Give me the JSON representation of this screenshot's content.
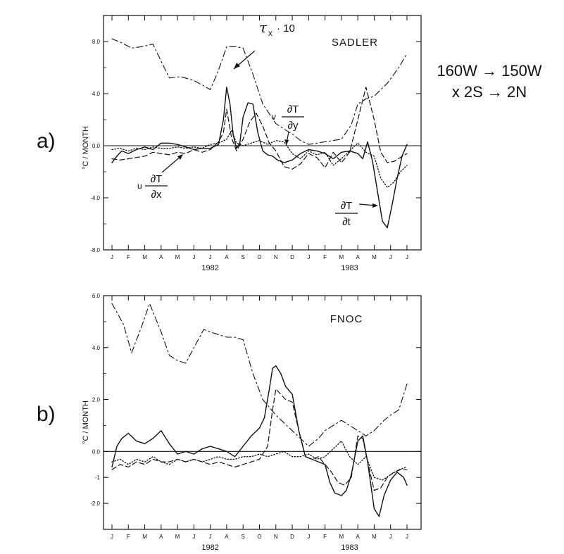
{
  "region": {
    "line1": "160W → 150W",
    "line2": "x 2S → 2N"
  },
  "chart_data": [
    {
      "type": "line",
      "panel": "a)",
      "title": "SADLER",
      "ylabel": "°C / MONTH",
      "ylim": [
        -8.0,
        10.0
      ],
      "yticks": [
        -8.0,
        -4.0,
        0.0,
        4.0,
        8.0
      ],
      "ytick_labels": [
        "-8.0",
        "-4.0",
        "0.0",
        "4.0",
        "8.0"
      ],
      "x_months": [
        "J",
        "F",
        "M",
        "A",
        "M",
        "J",
        "J",
        "A",
        "S",
        "O",
        "N",
        "D",
        "J",
        "F",
        "M",
        "A",
        "M",
        "J",
        "J"
      ],
      "x_years": [
        "1982",
        "1983"
      ],
      "xlim": [
        0,
        18
      ],
      "zero_line": true,
      "annotations": {
        "tau": {
          "sym": "τ",
          "sub": "x",
          "rest": "· 10"
        },
        "v_dTdy": {
          "coef": "v",
          "num": "∂T",
          "den": "∂y"
        },
        "u_dTdx": {
          "coef": "u",
          "num": "∂T",
          "den": "∂x"
        },
        "dTdt": {
          "num": "∂T",
          "den": "∂t"
        }
      },
      "series": [
        {
          "key": "tau_x_10",
          "style": "dash-dot",
          "x": [
            0,
            0.6,
            1.2,
            1.8,
            2.5,
            3.0,
            3.5,
            4.2,
            5.0,
            5.6,
            6.0,
            6.5,
            7.0,
            7.6,
            8.0,
            8.6,
            9.2,
            10.0,
            10.6,
            11.0,
            11.5,
            12.0,
            13.0,
            14.0,
            14.6,
            15.0,
            15.5,
            16.0,
            16.8,
            17.5,
            18.0
          ],
          "y": [
            8.2,
            7.9,
            7.5,
            7.6,
            7.8,
            6.5,
            5.2,
            5.3,
            5.0,
            4.6,
            4.3,
            5.8,
            7.6,
            7.6,
            7.5,
            5.5,
            3.2,
            1.7,
            1.2,
            0.9,
            0.4,
            0.1,
            0.3,
            0.5,
            1.6,
            3.2,
            3.6,
            3.8,
            4.8,
            6.0,
            7.1
          ]
        },
        {
          "key": "dT_dt",
          "style": "solid",
          "x": [
            0,
            0.3,
            0.6,
            1.0,
            1.5,
            2.0,
            2.5,
            3.0,
            3.5,
            4.0,
            4.5,
            5.0,
            5.5,
            6.0,
            6.5,
            6.8,
            7.0,
            7.2,
            7.4,
            7.6,
            7.8,
            8.0,
            8.3,
            8.6,
            8.9,
            9.2,
            9.5,
            9.8,
            10.1,
            10.5,
            11.0,
            11.5,
            12.0,
            12.5,
            13.0,
            13.5,
            14.0,
            14.5,
            15.0,
            15.3,
            15.6,
            15.9,
            16.2,
            16.5,
            16.8,
            17.1,
            17.4,
            17.7,
            18.0
          ],
          "y": [
            -1.3,
            -0.8,
            -0.4,
            -0.6,
            -0.3,
            -0.1,
            -0.3,
            0.2,
            0.2,
            0.1,
            -0.1,
            -0.3,
            -0.2,
            -0.2,
            0.1,
            2.0,
            4.5,
            3.2,
            0.8,
            -0.2,
            0.2,
            2.2,
            3.3,
            3.2,
            1.0,
            -0.4,
            -0.7,
            -0.8,
            -1.1,
            -1.3,
            -1.1,
            -0.6,
            -0.3,
            -0.4,
            -0.6,
            -1.0,
            -0.5,
            -0.4,
            -0.6,
            -1.0,
            0.3,
            -1.2,
            -3.5,
            -5.8,
            -6.3,
            -4.5,
            -2.5,
            -0.8,
            0.1
          ]
        },
        {
          "key": "v_dT_dy",
          "style": "dashed",
          "x": [
            0,
            0.5,
            1.0,
            1.5,
            2.0,
            2.5,
            3.0,
            3.5,
            4.0,
            4.5,
            5.0,
            5.5,
            6.0,
            6.5,
            6.8,
            7.0,
            7.3,
            7.6,
            8.0,
            8.4,
            8.8,
            9.2,
            9.6,
            10.0,
            10.5,
            11.0,
            11.5,
            12.0,
            12.5,
            13.0,
            13.5,
            14.0,
            14.5,
            15.0,
            15.5,
            16.0,
            16.4,
            16.8,
            17.2,
            17.6,
            18.0
          ],
          "y": [
            -1.0,
            -1.1,
            -1.0,
            -0.9,
            -0.8,
            -0.5,
            -0.6,
            -0.7,
            -0.5,
            -0.6,
            -0.3,
            -0.5,
            -0.3,
            0.3,
            1.0,
            2.8,
            0.6,
            -0.4,
            0.5,
            1.8,
            2.5,
            1.5,
            0.2,
            -0.4,
            -1.6,
            -1.8,
            -1.4,
            -0.6,
            -0.9,
            -1.7,
            -0.5,
            -1.3,
            -0.5,
            2.0,
            4.5,
            2.0,
            -0.5,
            -1.3,
            -1.2,
            -0.9,
            -0.6
          ]
        },
        {
          "key": "u_dT_dx",
          "style": "dotted",
          "x": [
            0,
            0.5,
            1.0,
            1.5,
            2.0,
            2.5,
            3.0,
            3.5,
            4.0,
            4.5,
            5.0,
            5.5,
            6.0,
            6.5,
            7.0,
            7.3,
            7.6,
            8.0,
            8.5,
            9.0,
            9.5,
            10.0,
            10.5,
            11.0,
            11.5,
            12.0,
            12.5,
            13.0,
            13.5,
            14.0,
            14.5,
            15.0,
            15.5,
            16.0,
            16.4,
            16.8,
            17.2,
            17.6,
            18.0
          ],
          "y": [
            -0.3,
            -0.2,
            -0.4,
            -0.2,
            -0.3,
            -0.1,
            -0.2,
            -0.2,
            -0.1,
            -0.2,
            -0.1,
            -0.2,
            0.1,
            0.2,
            0.5,
            1.2,
            0.2,
            0.0,
            0.2,
            0.4,
            0.1,
            0.4,
            0.3,
            -0.6,
            -1.0,
            -0.4,
            -0.7,
            -0.5,
            -1.5,
            -1.0,
            -0.4,
            0.2,
            -0.5,
            -0.8,
            -2.5,
            -3.2,
            -2.8,
            -2.0,
            -1.5
          ]
        }
      ]
    },
    {
      "type": "line",
      "panel": "b)",
      "title": "FNOC",
      "ylabel": "°C / MONTH",
      "ylim": [
        -3.0,
        6.0
      ],
      "yticks": [
        -2.0,
        -1.0,
        0.0,
        2.0,
        4.0,
        6.0
      ],
      "ytick_labels": [
        "-2.0",
        "-1",
        "0.0",
        "2.0",
        "4.0",
        "6.0"
      ],
      "x_months": [
        "J",
        "F",
        "M",
        "A",
        "M",
        "J",
        "J",
        "A",
        "S",
        "O",
        "N",
        "D",
        "J",
        "F",
        "M",
        "A",
        "M",
        "J",
        "J"
      ],
      "x_years": [
        "1982",
        "1983"
      ],
      "xlim": [
        0,
        18
      ],
      "zero_line": true,
      "series": [
        {
          "key": "tau_x_10",
          "style": "dash-dot",
          "x": [
            0,
            0.7,
            1.2,
            1.8,
            2.3,
            3.0,
            3.5,
            4.0,
            4.5,
            5.0,
            5.6,
            6.0,
            6.5,
            7.0,
            7.5,
            8.0,
            8.6,
            9.2,
            10.0,
            10.5,
            11.0,
            11.5,
            12.0,
            12.6,
            13.0,
            13.5,
            14.0,
            14.5,
            15.0,
            15.5,
            16.0,
            16.6,
            17.0,
            17.5,
            18.0
          ],
          "y": [
            5.7,
            4.9,
            3.8,
            4.8,
            5.7,
            4.6,
            3.7,
            3.5,
            3.4,
            4.0,
            4.7,
            4.6,
            4.5,
            4.4,
            4.4,
            4.3,
            3.0,
            2.0,
            1.4,
            1.1,
            0.8,
            0.5,
            0.2,
            0.5,
            0.8,
            1.0,
            1.2,
            1.0,
            0.8,
            0.6,
            0.8,
            1.2,
            1.4,
            1.6,
            2.6
          ]
        },
        {
          "key": "dT_dt",
          "style": "solid",
          "x": [
            0,
            0.3,
            0.6,
            1.0,
            1.5,
            2.0,
            2.5,
            3.0,
            3.5,
            4.0,
            4.5,
            5.0,
            5.5,
            6.0,
            6.5,
            7.0,
            7.5,
            8.0,
            8.5,
            9.0,
            9.3,
            9.6,
            9.8,
            10.0,
            10.3,
            10.6,
            11.0,
            11.4,
            11.8,
            12.2,
            12.6,
            13.0,
            13.3,
            13.6,
            14.0,
            14.3,
            14.6,
            15.0,
            15.3,
            15.6,
            16.0,
            16.3,
            16.6,
            17.0,
            17.4,
            17.8,
            18.0
          ],
          "y": [
            -0.6,
            0.2,
            0.5,
            0.7,
            0.4,
            0.3,
            0.5,
            0.8,
            0.3,
            -0.1,
            0.0,
            -0.1,
            0.1,
            0.2,
            0.1,
            0.0,
            -0.2,
            0.2,
            0.6,
            0.9,
            1.3,
            2.4,
            3.2,
            3.3,
            3.0,
            2.5,
            2.2,
            0.8,
            -0.2,
            -0.3,
            -0.4,
            -0.5,
            -1.2,
            -1.6,
            -1.7,
            -1.5,
            -0.9,
            0.4,
            0.6,
            -0.4,
            -2.2,
            -2.5,
            -1.7,
            -1.1,
            -0.8,
            -1.0,
            -1.3
          ]
        },
        {
          "key": "v_dT_dy",
          "style": "dashed",
          "x": [
            0,
            0.5,
            1.0,
            1.5,
            2.0,
            2.5,
            3.0,
            3.5,
            4.0,
            4.5,
            5.0,
            5.5,
            6.0,
            6.5,
            7.0,
            7.5,
            8.0,
            8.5,
            9.0,
            9.5,
            9.8,
            10.0,
            10.3,
            10.6,
            11.0,
            11.4,
            11.8,
            12.2,
            12.6,
            13.0,
            13.4,
            13.8,
            14.2,
            14.6,
            15.0,
            15.3,
            15.6,
            16.0,
            16.4,
            16.8,
            17.2,
            17.6,
            18.0
          ],
          "y": [
            -0.7,
            -0.5,
            -0.6,
            -0.4,
            -0.5,
            -0.3,
            -0.4,
            -0.4,
            -0.3,
            -0.4,
            -0.3,
            -0.4,
            -0.5,
            -0.4,
            -0.5,
            -0.6,
            -0.5,
            -0.4,
            -0.3,
            0.2,
            1.6,
            2.4,
            2.2,
            2.0,
            1.9,
            0.8,
            -0.2,
            -0.3,
            -0.2,
            -0.5,
            -0.8,
            -1.2,
            -1.3,
            -1.0,
            0.6,
            0.5,
            -0.4,
            -1.5,
            -1.4,
            -1.0,
            -0.8,
            -0.7,
            -0.7
          ]
        },
        {
          "key": "u_dT_dx",
          "style": "dotted",
          "x": [
            0,
            0.5,
            1.0,
            1.5,
            2.0,
            2.5,
            3.0,
            3.5,
            4.0,
            4.5,
            5.0,
            5.5,
            6.0,
            6.5,
            7.0,
            7.5,
            8.0,
            8.5,
            9.0,
            9.5,
            10.0,
            10.5,
            11.0,
            11.5,
            12.0,
            12.5,
            13.0,
            13.5,
            14.0,
            14.5,
            15.0,
            15.5,
            16.0,
            16.5,
            17.0,
            17.5,
            18.0
          ],
          "y": [
            -0.4,
            -0.3,
            -0.5,
            -0.3,
            -0.4,
            -0.2,
            -0.4,
            -0.5,
            -0.3,
            -0.4,
            -0.3,
            -0.4,
            -0.3,
            -0.2,
            -0.3,
            -0.3,
            -0.2,
            -0.2,
            -0.1,
            -0.2,
            -0.1,
            0.0,
            -0.2,
            -0.2,
            -0.1,
            -0.3,
            -0.2,
            0.1,
            0.4,
            -0.2,
            -0.5,
            -0.2,
            -1.0,
            -1.1,
            -0.9,
            -0.7,
            -0.6
          ]
        }
      ]
    }
  ]
}
